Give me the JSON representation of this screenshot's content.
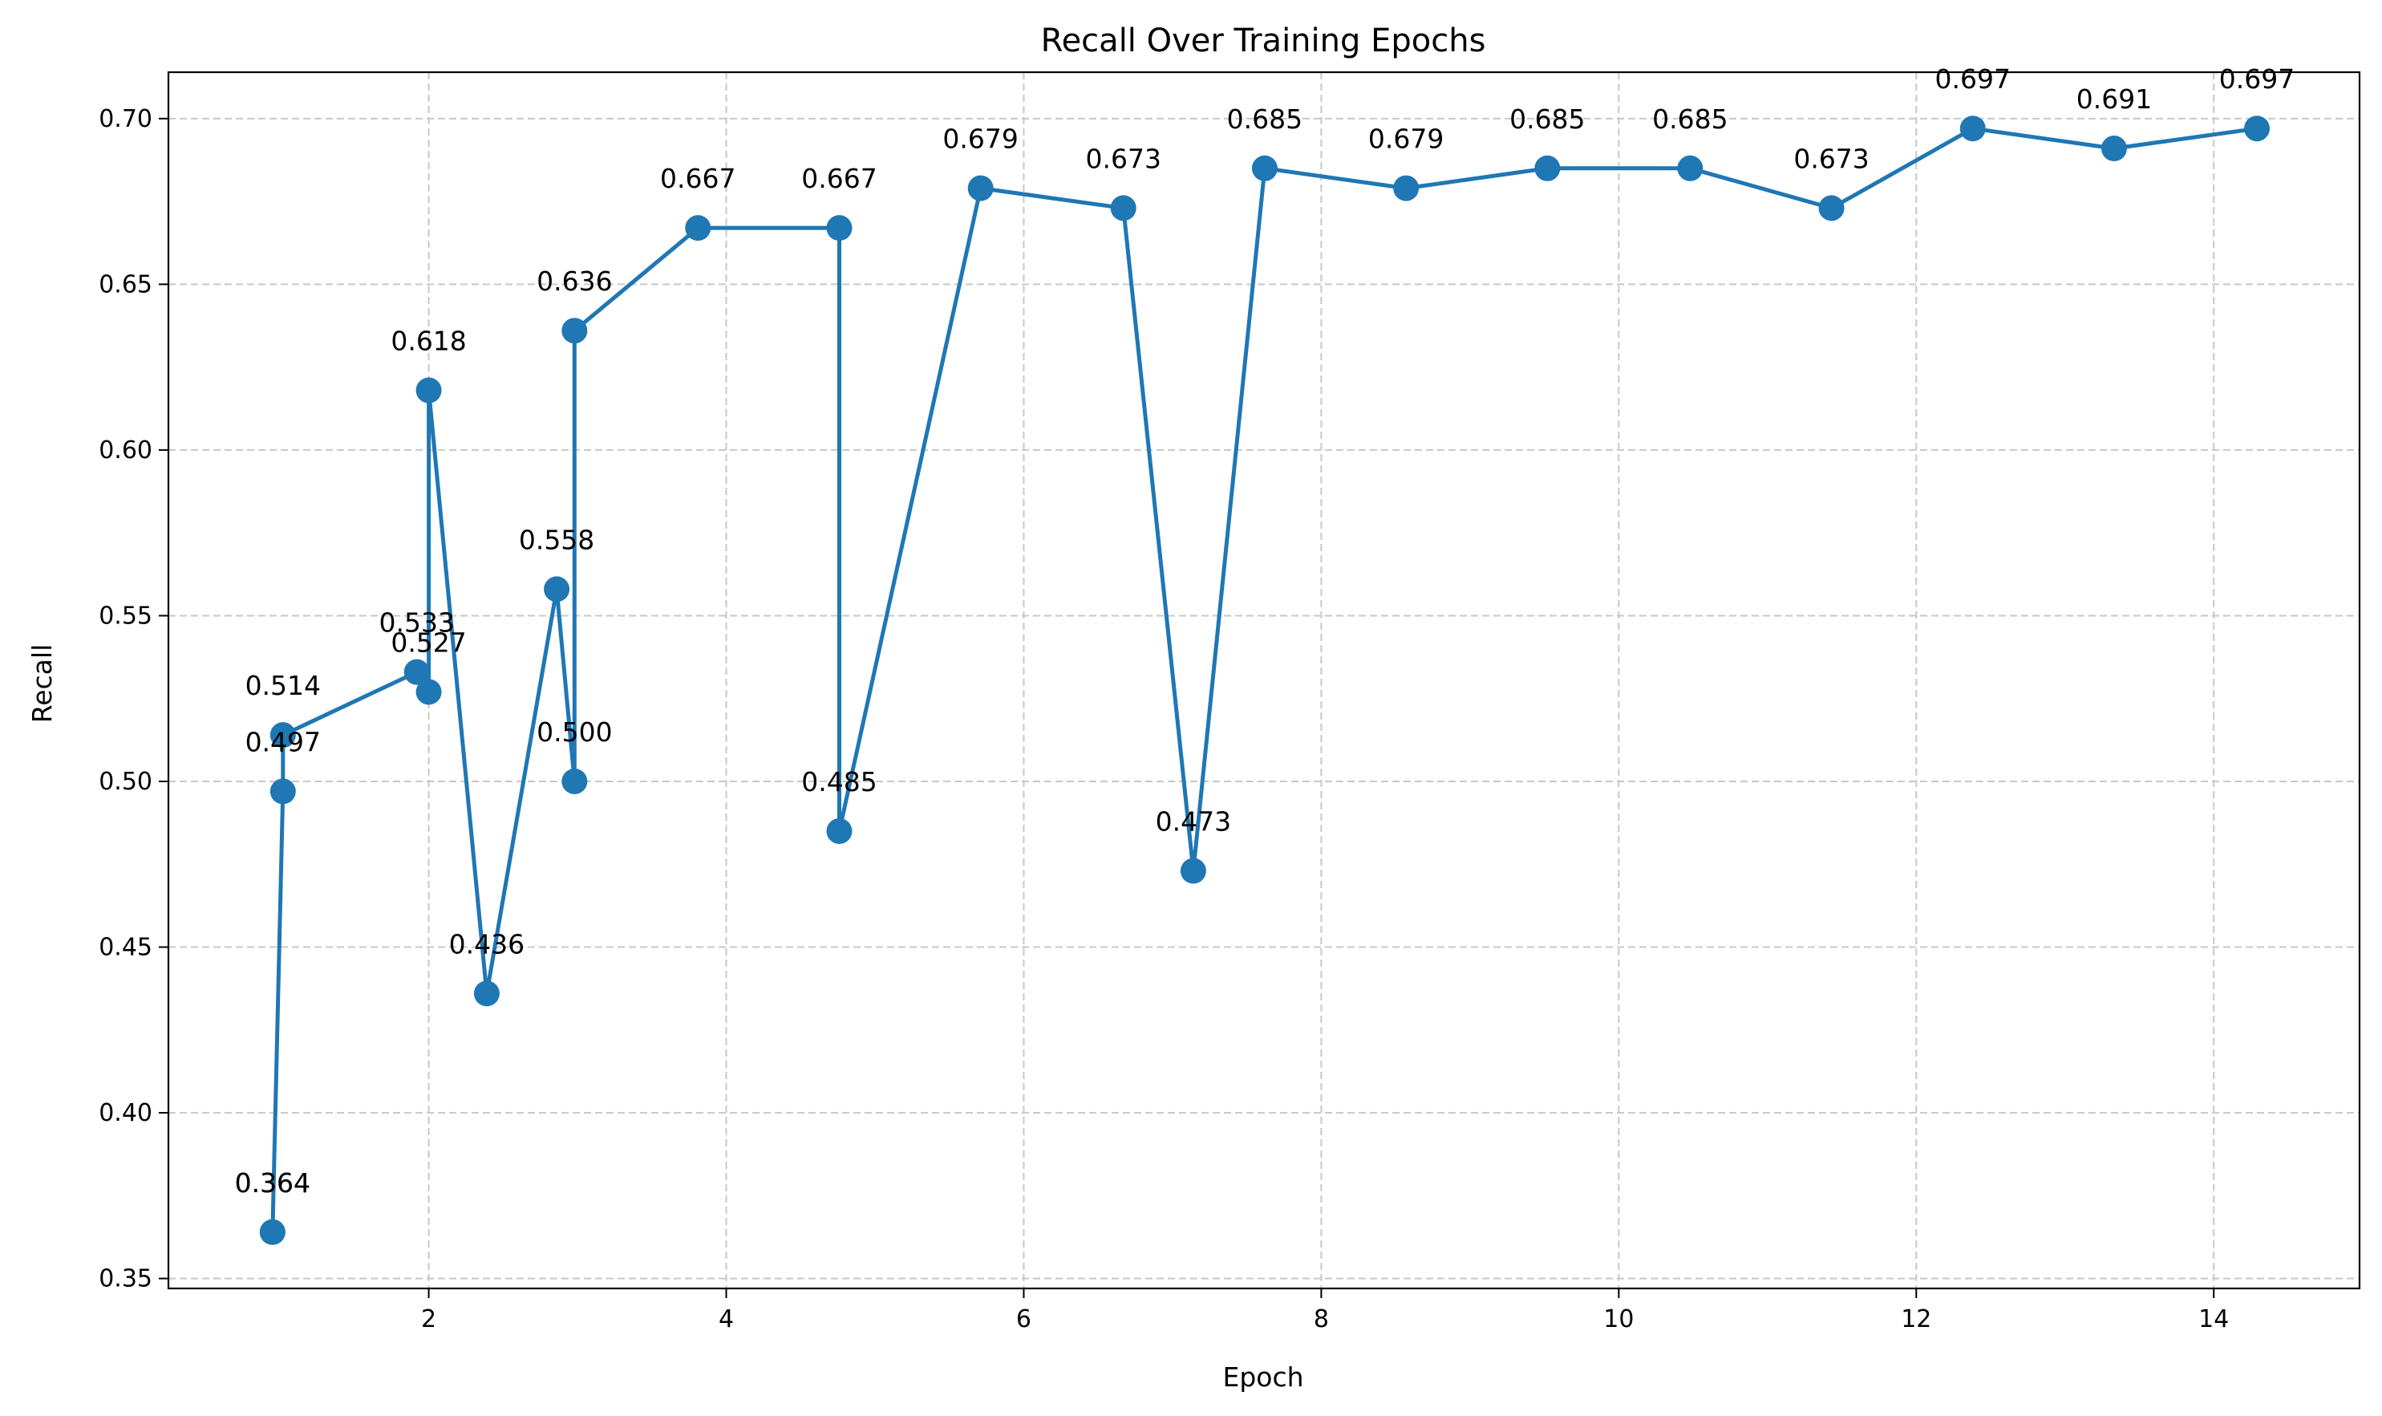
{
  "chart_data": {
    "type": "line",
    "title": "Recall Over Training Epochs",
    "xlabel": "Epoch",
    "ylabel": "Recall",
    "xlim": [
      0.25,
      14.98
    ],
    "ylim": [
      0.347,
      0.714
    ],
    "x_ticks": [
      2,
      4,
      6,
      8,
      10,
      12,
      14
    ],
    "y_ticks": [
      0.35,
      0.4,
      0.45,
      0.5,
      0.55,
      0.6,
      0.65,
      0.7
    ],
    "y_tick_labels": [
      "0.35",
      "0.40",
      "0.45",
      "0.50",
      "0.55",
      "0.60",
      "0.65",
      "0.70"
    ],
    "grid": true,
    "grid_style": "dashed",
    "legend": "none",
    "line_color": "#1f77b4",
    "marker": "circle",
    "series": [
      {
        "points": [
          {
            "x": 0.95,
            "y": 0.364,
            "label": "0.364"
          },
          {
            "x": 0.95,
            "y": 0.364,
            "label": "0.364"
          },
          {
            "x": 1.02,
            "y": 0.497,
            "label": "0.497"
          },
          {
            "x": 1.02,
            "y": 0.514,
            "label": "0.514"
          },
          {
            "x": 1.92,
            "y": 0.533,
            "label": "0.533"
          },
          {
            "x": 2.0,
            "y": 0.527,
            "label": "0.527"
          },
          {
            "x": 2.0,
            "y": 0.618,
            "label": "0.618"
          },
          {
            "x": 2.39,
            "y": 0.436,
            "label": "0.436"
          },
          {
            "x": 2.86,
            "y": 0.558,
            "label": "0.558"
          },
          {
            "x": 2.98,
            "y": 0.5,
            "label": "0.500"
          },
          {
            "x": 2.98,
            "y": 0.636,
            "label": "0.636"
          },
          {
            "x": 3.81,
            "y": 0.667,
            "label": "0.667"
          },
          {
            "x": 4.76,
            "y": 0.667,
            "label": "0.667"
          },
          {
            "x": 4.76,
            "y": 0.485,
            "label": "0.485"
          },
          {
            "x": 5.71,
            "y": 0.679,
            "label": "0.679"
          },
          {
            "x": 6.67,
            "y": 0.673,
            "label": "0.673"
          },
          {
            "x": 7.14,
            "y": 0.473,
            "label": "0.473"
          },
          {
            "x": 7.62,
            "y": 0.685,
            "label": "0.685"
          },
          {
            "x": 8.57,
            "y": 0.679,
            "label": "0.679"
          },
          {
            "x": 9.52,
            "y": 0.685,
            "label": "0.685"
          },
          {
            "x": 10.48,
            "y": 0.685,
            "label": "0.685"
          },
          {
            "x": 11.43,
            "y": 0.673,
            "label": "0.673"
          },
          {
            "x": 12.38,
            "y": 0.697,
            "label": "0.697"
          },
          {
            "x": 13.33,
            "y": 0.691,
            "label": "0.691"
          },
          {
            "x": 14.29,
            "y": 0.697,
            "label": "0.697"
          }
        ]
      }
    ]
  }
}
